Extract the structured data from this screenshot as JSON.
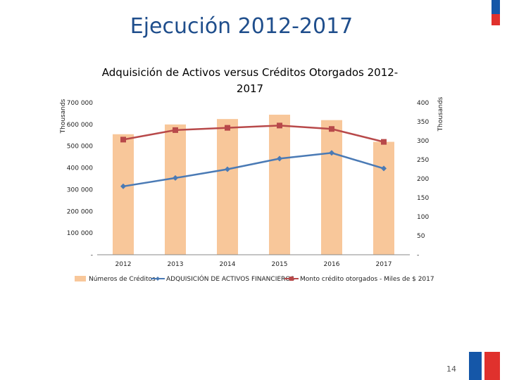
{
  "slide": {
    "title": "Ejecución 2012-2017",
    "page_number": "14"
  },
  "colors": {
    "bars": "#f8c79a",
    "blue_series": "#4a7ab5",
    "red_series": "#b8494a",
    "title": "#1f4e8c",
    "brand_blue": "#1557a8",
    "brand_red": "#e0312d"
  },
  "chart_data": {
    "type": "bar",
    "title": "Adquisición de Activos versus Créditos Otorgados 2012-2017",
    "title_lines": [
      "Adquisición de Activos versus Créditos Otorgados 2012-",
      "2017"
    ],
    "categories": [
      "2012",
      "2013",
      "2014",
      "2015",
      "2016",
      "2017"
    ],
    "left_axis": {
      "ylim": [
        0,
        700000
      ],
      "ticks": [
        0,
        100000,
        200000,
        300000,
        400000,
        500000,
        600000,
        700000
      ],
      "tick_labels": [
        "-",
        "100 000",
        "200 000",
        "300 000",
        "400 000",
        "500 000",
        "600 000",
        "700 000"
      ],
      "unit_label": "Thousands"
    },
    "right_axis": {
      "ylim": [
        0,
        400
      ],
      "ticks": [
        0,
        50,
        100,
        150,
        200,
        250,
        300,
        350,
        400
      ],
      "tick_labels": [
        "-",
        "50",
        "100",
        "150",
        "200",
        "250",
        "300",
        "350",
        "400"
      ],
      "unit_label": "Thousands"
    },
    "series": [
      {
        "name": "Números de Créditos",
        "kind": "bar",
        "axis": "left",
        "values": [
          555000,
          600000,
          625000,
          645000,
          620000,
          520000
        ]
      },
      {
        "name": "ADQUISICIÓN DE ACTIVOS FINANCIEROS",
        "kind": "line",
        "marker": "diamond",
        "axis": "right",
        "values": [
          180,
          202,
          225,
          253,
          268,
          227
        ]
      },
      {
        "name": "Monto crédito otorgados - Miles de $ 2017",
        "kind": "line",
        "marker": "square",
        "axis": "right",
        "values": [
          303,
          328,
          334,
          340,
          331,
          297
        ]
      }
    ],
    "legend_position": "bottom"
  }
}
